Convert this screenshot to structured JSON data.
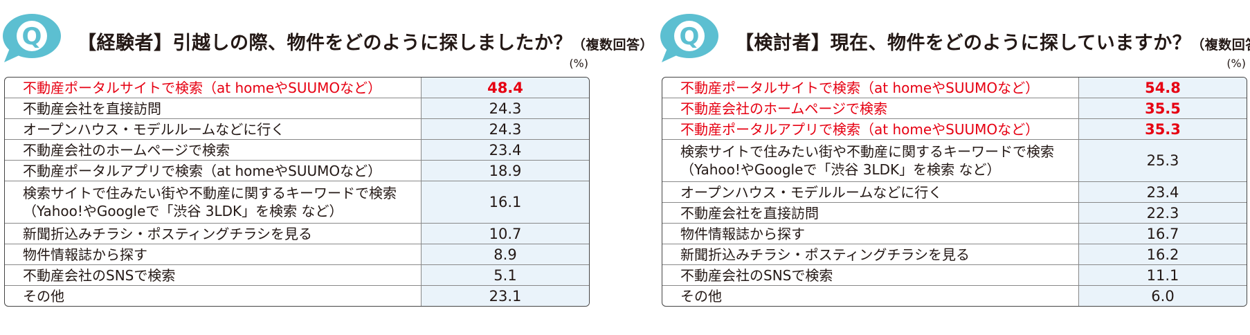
{
  "colors": {
    "accent": "#e60012",
    "icon": "#5cbfd1",
    "value_bg": "#eaf3fa"
  },
  "icon_letter": "Q",
  "panels": [
    {
      "title_main": "【経験者】引越しの際、物件をどのように探しましたか？",
      "title_sub": "（複数回答）",
      "unit": "(%)",
      "rows": [
        {
          "label": "不動産ポータルサイトで検索（at homeやSUUMOなど）",
          "value": "48.4",
          "highlight": true
        },
        {
          "label": "不動産会社を直接訪問",
          "value": "24.3",
          "highlight": false
        },
        {
          "label": "オープンハウス・モデルルームなどに行く",
          "value": "24.3",
          "highlight": false
        },
        {
          "label": "不動産会社のホームページで検索",
          "value": "23.4",
          "highlight": false
        },
        {
          "label": "不動産ポータルアプリで検索（at homeやSUUMOなど）",
          "value": "18.9",
          "highlight": false
        },
        {
          "label": "検索サイトで住みたい街や不動産に関するキーワードで検索\n（Yahoo!やGoogleで「渋谷 3LDK」を検索 など）",
          "value": "16.1",
          "highlight": false
        },
        {
          "label": "新聞折込みチラシ・ポスティングチラシを見る",
          "value": "10.7",
          "highlight": false
        },
        {
          "label": "物件情報誌から探す",
          "value": "8.9",
          "highlight": false
        },
        {
          "label": "不動産会社のSNSで検索",
          "value": "5.1",
          "highlight": false
        },
        {
          "label": "その他",
          "value": "23.1",
          "highlight": false
        }
      ]
    },
    {
      "title_main": "【検討者】現在、物件をどのように探していますか？",
      "title_sub": "（複数回答）",
      "unit": "(%)",
      "rows": [
        {
          "label": "不動産ポータルサイトで検索（at homeやSUUMOなど）",
          "value": "54.8",
          "highlight": true
        },
        {
          "label": "不動産会社のホームページで検索",
          "value": "35.5",
          "highlight": true
        },
        {
          "label": "不動産ポータルアプリで検索（at homeやSUUMOなど）",
          "value": "35.3",
          "highlight": true
        },
        {
          "label": "検索サイトで住みたい街や不動産に関するキーワードで検索\n（Yahoo!やGoogleで「渋谷 3LDK」を検索 など）",
          "value": "25.3",
          "highlight": false
        },
        {
          "label": "オープンハウス・モデルルームなどに行く",
          "value": "23.4",
          "highlight": false
        },
        {
          "label": "不動産会社を直接訪問",
          "value": "22.3",
          "highlight": false
        },
        {
          "label": "物件情報誌から探す",
          "value": "16.7",
          "highlight": false
        },
        {
          "label": "新聞折込みチラシ・ポスティングチラシを見る",
          "value": "16.2",
          "highlight": false
        },
        {
          "label": "不動産会社のSNSで検索",
          "value": "11.1",
          "highlight": false
        },
        {
          "label": "その他",
          "value": "6.0",
          "highlight": false
        }
      ]
    }
  ]
}
